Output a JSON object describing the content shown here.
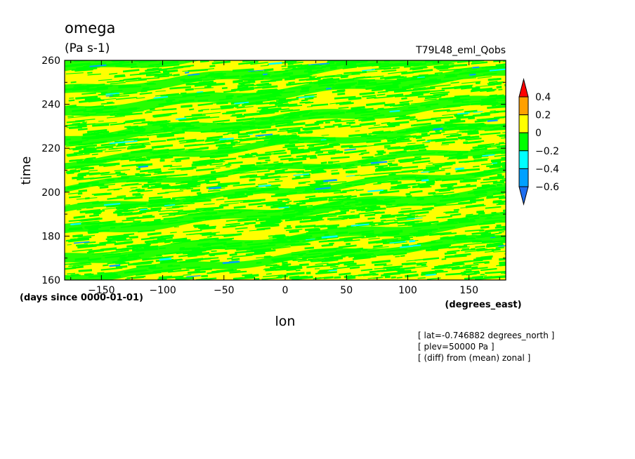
{
  "chart_data": {
    "type": "heatmap",
    "title": "omega",
    "subtitle": "(Pa s-1)",
    "run_label": "T79L48_eml_Qobs",
    "xlabel": "lon",
    "x_units": "(degrees_east)",
    "ylabel": "time",
    "y_units": "(days since 0000-01-01)",
    "xlim": [
      -180,
      180
    ],
    "ylim": [
      160,
      260
    ],
    "x_ticks": [
      -150,
      -100,
      -50,
      0,
      50,
      100,
      150
    ],
    "y_ticks": [
      160,
      180,
      200,
      220,
      240,
      260
    ],
    "colorbar": {
      "levels": [
        -0.6,
        -0.4,
        -0.2,
        0,
        0.2,
        0.4
      ],
      "tick_labels": [
        "−0.6",
        "−0.4",
        "−0.2",
        "0",
        "0.2",
        "0.4"
      ],
      "colors": [
        "#1e6ef0",
        "#00a0ff",
        "#00ffff",
        "#00ff00",
        "#ffff00",
        "#ffa000",
        "#ff0000"
      ]
    },
    "background_color": "#ffff00",
    "notes": [
      "[ lat=-0.746882 degrees_north ]",
      "[ plev=50000 Pa ]",
      "[ (diff) from (mean) zonal ]"
    ]
  }
}
